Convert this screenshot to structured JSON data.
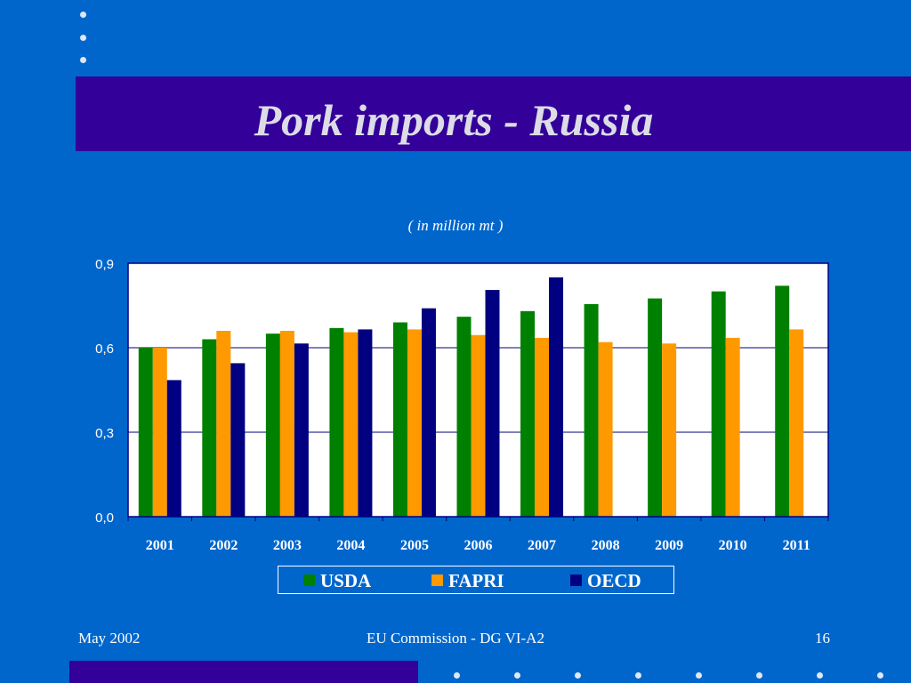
{
  "slide": {
    "title": "Pork imports - Russia",
    "subtitle": "( in million mt )"
  },
  "footer": {
    "date": "May 2002",
    "center": "EU Commission - DG VI-A2",
    "page": "16"
  },
  "colors": {
    "background": "#0066cc",
    "title_band": "#330099",
    "USDA": "#008000",
    "FAPRI": "#ff9900",
    "OECD": "#000080"
  },
  "chart_data": {
    "type": "bar",
    "categories": [
      "2001",
      "2002",
      "2003",
      "2004",
      "2005",
      "2006",
      "2007",
      "2008",
      "2009",
      "2010",
      "2011"
    ],
    "series": [
      {
        "name": "USDA",
        "color": "#008000",
        "values": [
          0.6,
          0.63,
          0.65,
          0.67,
          0.69,
          0.71,
          0.73,
          0.755,
          0.775,
          0.8,
          0.82
        ]
      },
      {
        "name": "FAPRI",
        "color": "#ff9900",
        "values": [
          0.6,
          0.66,
          0.66,
          0.655,
          0.665,
          0.645,
          0.635,
          0.62,
          0.615,
          0.635,
          0.665
        ]
      },
      {
        "name": "OECD",
        "color": "#000080",
        "values": [
          0.485,
          0.545,
          0.615,
          0.665,
          0.74,
          0.805,
          0.85,
          null,
          null,
          null,
          null
        ]
      }
    ],
    "yticks": [
      "0,0",
      "0,3",
      "0,6",
      "0,9"
    ],
    "ylim": [
      0,
      0.9
    ],
    "grid": true,
    "legend_position": "bottom"
  }
}
